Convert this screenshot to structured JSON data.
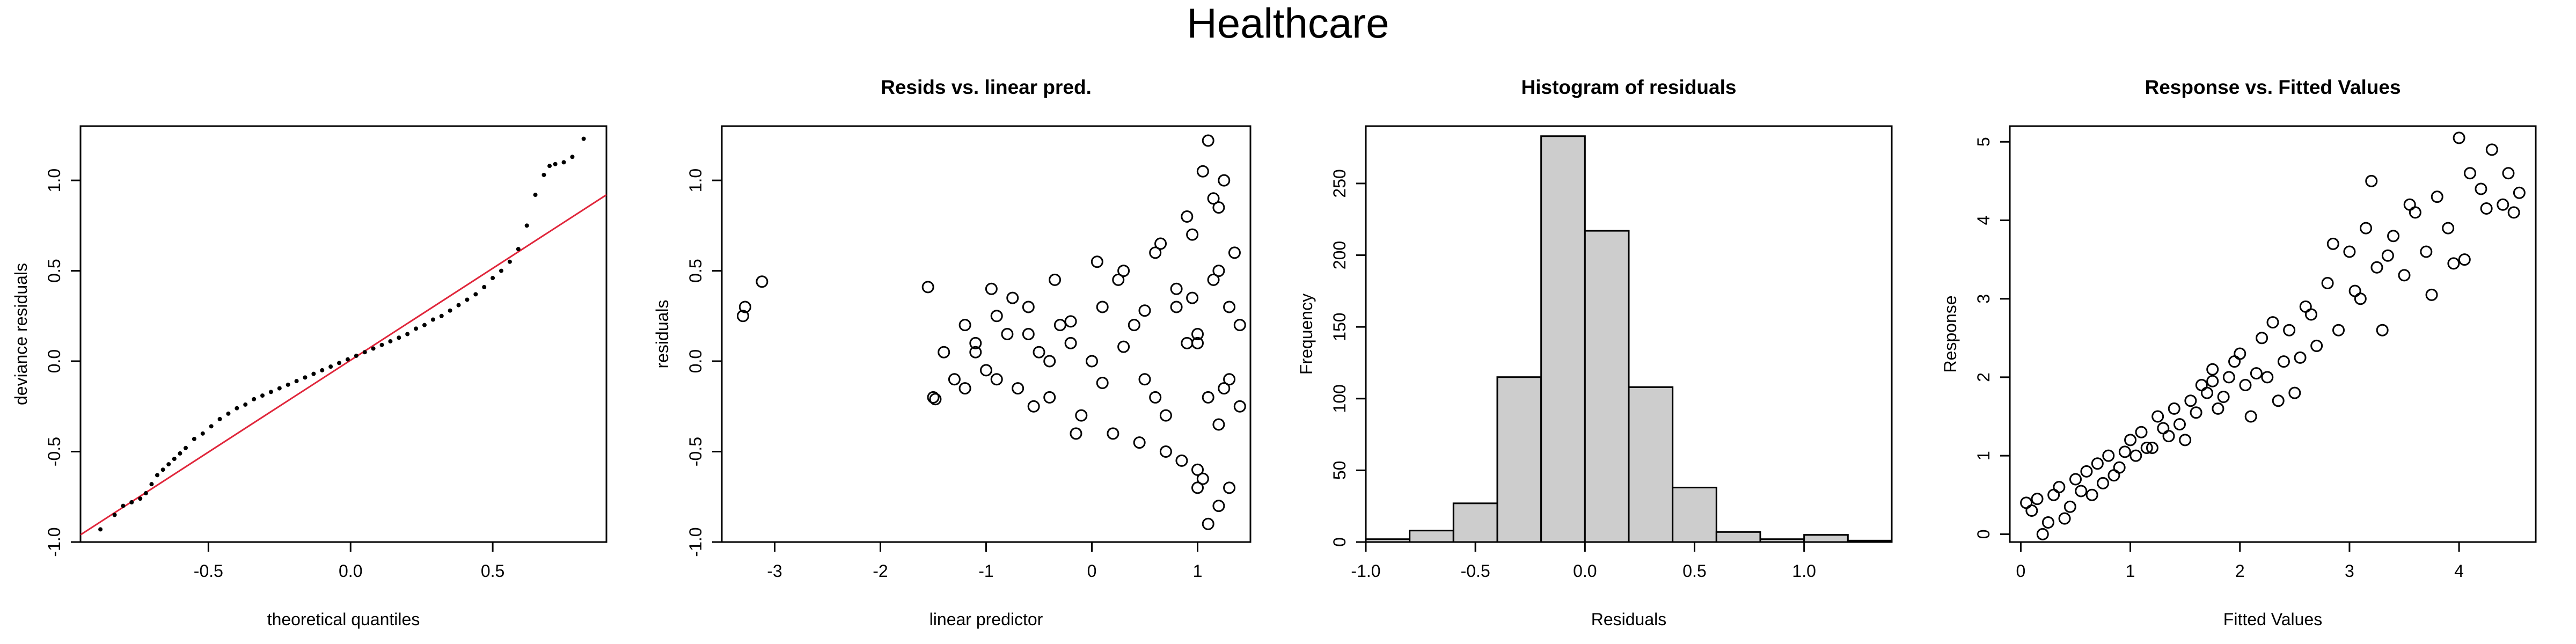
{
  "title": "Healthcare",
  "chart_data": [
    {
      "type": "scatter",
      "title": "",
      "xlabel": "theoretical quantiles",
      "ylabel": "deviance residuals",
      "xlim": [
        -0.95,
        0.9
      ],
      "ylim": [
        -1.0,
        1.3
      ],
      "xticks": [
        "-0.5",
        "0.0",
        "0.5"
      ],
      "yticks": [
        "-1.0",
        "-0.5",
        "0.0",
        "0.5",
        "1.0"
      ],
      "reference_line": {
        "color": "#e0263b",
        "x": [
          -0.95,
          0.9
        ],
        "y": [
          -0.96,
          0.92
        ]
      },
      "series": [
        {
          "marker": "dot",
          "x": [
            -0.88,
            -0.83,
            -0.8,
            -0.77,
            -0.74,
            -0.72,
            -0.7,
            -0.68,
            -0.66,
            -0.64,
            -0.62,
            -0.6,
            -0.58,
            -0.55,
            -0.52,
            -0.49,
            -0.46,
            -0.43,
            -0.4,
            -0.37,
            -0.34,
            -0.31,
            -0.28,
            -0.25,
            -0.22,
            -0.19,
            -0.16,
            -0.13,
            -0.1,
            -0.07,
            -0.04,
            -0.01,
            0.02,
            0.05,
            0.08,
            0.11,
            0.14,
            0.17,
            0.2,
            0.23,
            0.26,
            0.29,
            0.32,
            0.35,
            0.38,
            0.41,
            0.44,
            0.47,
            0.5,
            0.53,
            0.56,
            0.59,
            0.62,
            0.65,
            0.68,
            0.7,
            0.72,
            0.75,
            0.78,
            0.82
          ],
          "y": [
            -0.93,
            -0.85,
            -0.8,
            -0.78,
            -0.76,
            -0.73,
            -0.68,
            -0.63,
            -0.6,
            -0.57,
            -0.54,
            -0.51,
            -0.48,
            -0.43,
            -0.4,
            -0.36,
            -0.32,
            -0.29,
            -0.26,
            -0.24,
            -0.21,
            -0.19,
            -0.17,
            -0.15,
            -0.13,
            -0.11,
            -0.09,
            -0.07,
            -0.05,
            -0.03,
            -0.01,
            0.01,
            0.03,
            0.05,
            0.07,
            0.09,
            0.11,
            0.13,
            0.15,
            0.18,
            0.2,
            0.23,
            0.25,
            0.28,
            0.31,
            0.34,
            0.37,
            0.41,
            0.46,
            0.5,
            0.55,
            0.62,
            0.75,
            0.92,
            1.03,
            1.08,
            1.09,
            1.1,
            1.13,
            1.23
          ]
        }
      ]
    },
    {
      "type": "scatter",
      "title": "Resids vs. linear pred.",
      "xlabel": "linear predictor",
      "ylabel": "residuals",
      "xlim": [
        -3.5,
        1.5
      ],
      "ylim": [
        -1.0,
        1.3
      ],
      "xticks": [
        "-3",
        "-2",
        "-1",
        "0",
        "1"
      ],
      "yticks": [
        "-1.0",
        "-0.5",
        "0.0",
        "0.5",
        "1.0"
      ],
      "series": [
        {
          "marker": "circle",
          "x": [
            -3.3,
            -3.28,
            -3.12,
            -1.55,
            -1.5,
            -1.48,
            -1.4,
            -1.3,
            -1.2,
            -1.1,
            -1.0,
            -0.9,
            -0.8,
            -0.7,
            -0.6,
            -0.5,
            -0.4,
            -0.3,
            -0.2,
            -0.1,
            0.0,
            0.1,
            0.2,
            0.3,
            0.4,
            0.5,
            0.6,
            0.7,
            0.8,
            0.9,
            1.0,
            1.05,
            1.1,
            1.15,
            1.2,
            1.25,
            1.3,
            1.35,
            1.4,
            -1.2,
            -0.95,
            -0.75,
            -0.55,
            -0.35,
            -0.15,
            0.05,
            0.25,
            0.45,
            0.65,
            0.85,
            0.95,
            1.0,
            1.1,
            1.2,
            1.3,
            1.4,
            1.0,
            1.1,
            1.2,
            -1.1,
            -0.9,
            -0.6,
            -0.4,
            -0.2,
            0.1,
            0.3,
            0.5,
            0.7,
            0.9,
            1.0,
            1.2,
            1.3,
            0.95,
            1.05,
            1.15,
            1.25,
            0.8,
            0.6
          ],
          "y": [
            0.25,
            0.3,
            0.44,
            0.41,
            -0.2,
            -0.21,
            0.05,
            -0.1,
            0.2,
            0.1,
            -0.05,
            0.25,
            0.15,
            -0.15,
            0.3,
            0.05,
            -0.2,
            0.2,
            0.1,
            -0.3,
            0.0,
            0.3,
            -0.4,
            0.5,
            0.2,
            -0.1,
            0.6,
            -0.5,
            0.4,
            0.8,
            -0.6,
            1.05,
            1.22,
            0.9,
            -0.8,
            1.0,
            -0.7,
            0.6,
            -0.25,
            -0.15,
            0.4,
            0.35,
            -0.25,
            0.45,
            -0.4,
            0.55,
            0.45,
            -0.45,
            0.65,
            -0.55,
            0.35,
            -0.7,
            -0.9,
            0.85,
            0.3,
            0.2,
            0.1,
            -0.2,
            0.5,
            0.05,
            -0.1,
            0.15,
            0.0,
            0.22,
            -0.12,
            0.08,
            0.28,
            -0.3,
            0.1,
            0.15,
            -0.35,
            -0.1,
            0.7,
            -0.65,
            0.45,
            -0.15,
            0.3,
            -0.2
          ]
        }
      ]
    },
    {
      "type": "bar",
      "title": "Histogram of residuals",
      "xlabel": "Residuals",
      "ylabel": "Frequency",
      "xlim": [
        -1.0,
        1.4
      ],
      "ylim": [
        0,
        290
      ],
      "xticks": [
        "-1.0",
        "-0.5",
        "0.0",
        "0.5",
        "1.0"
      ],
      "yticks": [
        "0",
        "50",
        "100",
        "150",
        "200",
        "250"
      ],
      "bin_edges": [
        -1.0,
        -0.8,
        -0.6,
        -0.4,
        -0.2,
        0.0,
        0.2,
        0.4,
        0.6,
        0.8,
        1.0,
        1.2,
        1.4
      ],
      "values": [
        2,
        8,
        27,
        115,
        283,
        217,
        108,
        38,
        7,
        2,
        5,
        1
      ],
      "bar_color": "#cdcdcd"
    },
    {
      "type": "scatter",
      "title": "Response vs. Fitted Values",
      "xlabel": "Fitted Values",
      "ylabel": "Response",
      "xlim": [
        -0.1,
        4.7
      ],
      "ylim": [
        -0.1,
        5.2
      ],
      "xticks": [
        "0",
        "1",
        "2",
        "3",
        "4"
      ],
      "yticks": [
        "0",
        "1",
        "2",
        "3",
        "4",
        "5"
      ],
      "series": [
        {
          "marker": "circle",
          "x": [
            0.05,
            0.1,
            0.2,
            0.3,
            0.35,
            0.4,
            0.5,
            0.55,
            0.6,
            0.7,
            0.75,
            0.8,
            0.9,
            1.0,
            1.05,
            1.1,
            1.2,
            1.25,
            1.3,
            1.4,
            1.5,
            1.55,
            1.6,
            1.7,
            1.75,
            1.8,
            1.9,
            2.0,
            2.05,
            2.1,
            2.2,
            2.25,
            2.3,
            2.4,
            2.5,
            2.6,
            2.7,
            2.8,
            2.9,
            3.0,
            3.1,
            3.2,
            3.25,
            3.3,
            3.4,
            3.5,
            3.6,
            3.7,
            3.8,
            3.9,
            4.0,
            4.05,
            4.1,
            4.2,
            4.3,
            4.4,
            4.5,
            4.55,
            0.15,
            0.45,
            0.65,
            0.85,
            1.15,
            1.35,
            1.45,
            1.65,
            1.85,
            1.95,
            2.15,
            2.35,
            2.45,
            2.65,
            2.85,
            3.05,
            3.35,
            3.55,
            3.75,
            3.95,
            4.25,
            4.45,
            0.25,
            0.95,
            1.75,
            2.55,
            3.15
          ],
          "y": [
            0.4,
            0.3,
            0.0,
            0.5,
            0.6,
            0.2,
            0.7,
            0.55,
            0.8,
            0.9,
            0.65,
            1.0,
            0.85,
            1.2,
            1.0,
            1.3,
            1.1,
            1.5,
            1.35,
            1.6,
            1.2,
            1.7,
            1.55,
            1.8,
            2.1,
            1.6,
            2.0,
            2.3,
            1.9,
            1.5,
            2.5,
            2.0,
            2.7,
            2.2,
            1.8,
            2.9,
            2.4,
            3.2,
            2.6,
            3.6,
            3.0,
            4.5,
            3.4,
            2.6,
            3.8,
            3.3,
            4.1,
            3.6,
            4.3,
            3.9,
            5.05,
            3.5,
            4.6,
            4.4,
            4.9,
            4.2,
            4.1,
            4.35,
            0.45,
            0.35,
            0.5,
            0.75,
            1.1,
            1.25,
            1.4,
            1.9,
            1.75,
            2.2,
            2.05,
            1.7,
            2.6,
            2.8,
            3.7,
            3.1,
            3.55,
            4.2,
            3.05,
            3.45,
            4.15,
            4.6,
            0.15,
            1.05,
            1.95,
            2.25,
            3.9
          ]
        }
      ]
    }
  ]
}
